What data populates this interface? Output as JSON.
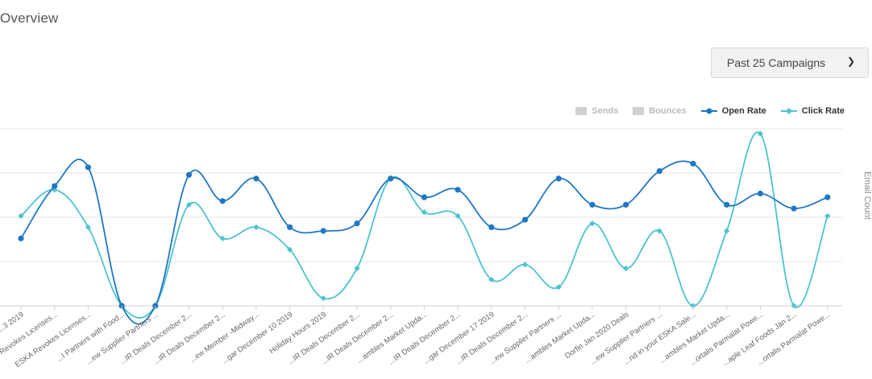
{
  "page": {
    "title": "Overview"
  },
  "filter": {
    "selected": "Past 25 Campaigns",
    "chevron_icon": "chevron-down-icon"
  },
  "legend": {
    "sends": "Sends",
    "bounces": "Bounces",
    "open_rate": "Open Rate",
    "click_rate": "Click Rate"
  },
  "colors": {
    "open_rate": "#1f77c4",
    "click_rate": "#4cc3cf",
    "inactive": "#d0d0d0",
    "grid": "#e6e6e6"
  },
  "chart_data": {
    "type": "line",
    "y2label": "Email Count",
    "grid": true,
    "legend_position": "top-right",
    "categories": [
      "...3 2019",
      "ESKA Revokes Licenses...",
      "ESKA Revokes Licenses...",
      "...I Partners with Food...",
      "...ew Supplier Partners ...",
      "...IR Deals December 2...",
      "...IR Deals December 2...",
      "...ew Member -Midway...",
      "...gar December 10 2019",
      "Holiday Hours 2019",
      "...IR Deals December 2...",
      "...IR Deals December 2...",
      "...ambles Market Upda...",
      "...IR Deals December 2...",
      "...gar December 17 2019",
      "...IR Deals December 2...",
      "...ew Supplier Partners ...",
      "...ambles Market Upda...",
      "Dorfin Jan 2020 Deals",
      "...ew Supplier Partners ...",
      "...nd in your ESKA Sale...",
      "...ambles Market Upda...",
      "...ortalis Parmalat Powe...",
      "...aple Leaf Foods Jan 2...",
      "...ortalis Parmalat Powe..."
    ],
    "series": [
      {
        "name": "Open Rate",
        "values": [
          18,
          32,
          37,
          0,
          0,
          35,
          28,
          34,
          21,
          20,
          22,
          34,
          29,
          31,
          21,
          23,
          34,
          27,
          27,
          36,
          38,
          27,
          30,
          26,
          29
        ]
      },
      {
        "name": "Click Rate",
        "values": [
          24,
          31,
          21,
          0,
          0,
          27,
          18,
          21,
          15,
          2,
          10,
          34,
          25,
          24,
          7,
          11,
          5,
          22,
          10,
          20,
          0,
          20,
          46,
          0,
          24
        ]
      }
    ]
  }
}
